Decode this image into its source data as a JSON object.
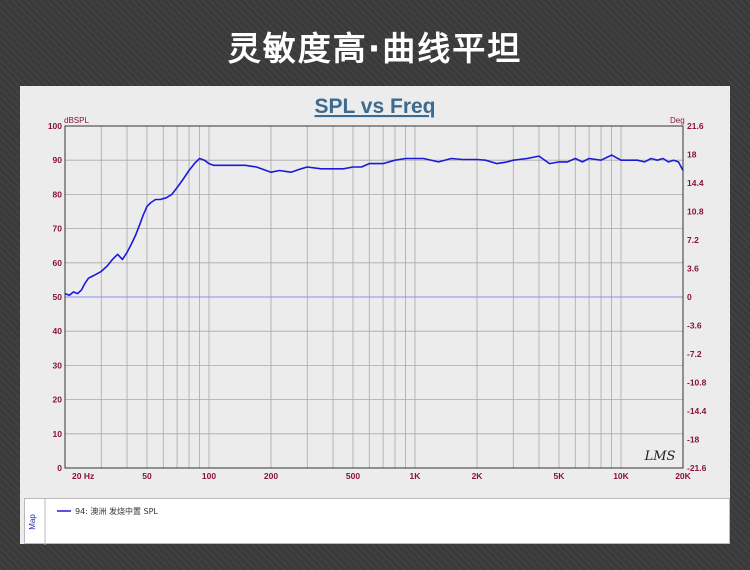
{
  "banner": {
    "title": "灵敏度高·曲线平坦"
  },
  "colors": {
    "curve": "#1a1adc",
    "reference_line": "#8c8cf0",
    "grid": "#a8a8a8",
    "axis_text": "#8a1238",
    "title": "#3d6b8f"
  },
  "legend": {
    "side_label": "Map",
    "entries": [
      {
        "label": "94: 澳洲 发烧中置 SPL",
        "color": "#1a1adc"
      }
    ]
  },
  "chart_data": {
    "type": "line",
    "title": "SPL vs Freq",
    "ylabel": "dBSPL",
    "y2label": "Deg",
    "x_scale": "log",
    "xlim": [
      20,
      20000
    ],
    "ylim": [
      0,
      100
    ],
    "y2lim": [
      -21.6,
      21.6
    ],
    "grid": true,
    "x_ticks": [
      20,
      50,
      100,
      200,
      500,
      1000,
      2000,
      5000,
      10000,
      20000
    ],
    "x_tick_labels": [
      "20 Hz",
      "50",
      "100",
      "200",
      "500",
      "1K",
      "2K",
      "5K",
      "10K",
      "20K"
    ],
    "y_ticks": [
      0,
      10,
      20,
      30,
      40,
      50,
      60,
      70,
      80,
      90,
      100
    ],
    "y_tick_labels": [
      "0",
      "10",
      "20",
      "30",
      "40",
      "50",
      "60",
      "70",
      "80",
      "90",
      "100"
    ],
    "y2_ticks": [
      -21.6,
      -18,
      -14.4,
      -10.8,
      -7.2,
      -3.6,
      0,
      3.6,
      7.2,
      10.8,
      14.4,
      18,
      21.6
    ],
    "y2_tick_labels": [
      "-21.6",
      "-18",
      "-14.4",
      "-10.8",
      "-7.2",
      "-3.6",
      "0",
      "3.6",
      "7.2",
      "10.8",
      "14.4",
      "18",
      "21.6"
    ],
    "reference_line": {
      "y": 50
    },
    "watermark": "LMS",
    "series": [
      {
        "name": "94: 澳洲 发烧中置 SPL",
        "x": [
          20,
          21,
          22,
          23,
          24,
          25,
          26,
          27,
          28,
          30,
          32,
          34,
          36,
          38,
          40,
          42,
          44,
          46,
          48,
          50,
          52,
          55,
          58,
          62,
          66,
          70,
          75,
          80,
          85,
          90,
          95,
          100,
          105,
          110,
          120,
          130,
          150,
          170,
          200,
          220,
          250,
          280,
          300,
          350,
          400,
          450,
          500,
          550,
          600,
          700,
          800,
          900,
          1000,
          1100,
          1300,
          1500,
          1700,
          2000,
          2200,
          2500,
          2800,
          3000,
          3500,
          4000,
          4500,
          5000,
          5500,
          6000,
          6500,
          7000,
          8000,
          9000,
          10000,
          11000,
          12000,
          13000,
          14000,
          15000,
          16000,
          17000,
          18000,
          19000,
          20000
        ],
        "y": [
          51,
          50.5,
          51.5,
          51,
          52,
          54,
          55.5,
          56,
          56.5,
          57.5,
          59,
          61,
          62.5,
          61,
          63,
          65.5,
          68,
          71,
          74,
          76.5,
          77.5,
          78.5,
          78.5,
          79,
          80,
          82,
          84.5,
          87,
          89,
          90.5,
          90,
          89,
          88.5,
          88.5,
          88.5,
          88.5,
          88.5,
          88,
          86.5,
          87,
          86.5,
          87.5,
          88,
          87.5,
          87.5,
          87.5,
          88,
          88,
          89,
          89,
          90,
          90.5,
          90.5,
          90.5,
          89.5,
          90.5,
          90.2,
          90.2,
          90,
          89,
          89.5,
          90,
          90.5,
          91.2,
          89,
          89.5,
          89.5,
          90.5,
          89.5,
          90.5,
          90,
          91.5,
          90,
          90,
          90,
          89.5,
          90.5,
          90,
          90.5,
          89.5,
          90,
          89.5,
          87
        ]
      }
    ]
  }
}
